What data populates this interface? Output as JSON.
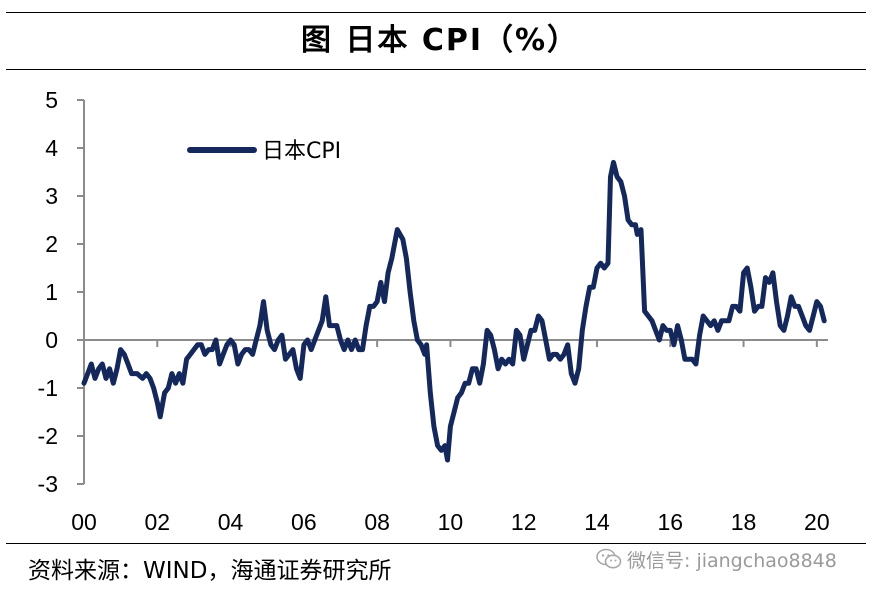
{
  "title": "图  日本 CPI（%）",
  "source": "资料来源：WIND，海通证券研究所",
  "watermark": {
    "icon": "wechat-icon",
    "text": "微信号: jiangchao8848"
  },
  "colors": {
    "series": "#14285c",
    "axis": "#8c8c8c"
  },
  "chart_data": {
    "type": "line",
    "title": "",
    "xlabel": "",
    "ylabel": "",
    "xlim": [
      2000,
      2020.25
    ],
    "ylim": [
      -3,
      5
    ],
    "x_ticks": [
      "00",
      "02",
      "04",
      "06",
      "08",
      "10",
      "12",
      "14",
      "16",
      "18",
      "20"
    ],
    "x_tick_values": [
      2000,
      2002,
      2004,
      2006,
      2008,
      2010,
      2012,
      2014,
      2016,
      2018,
      2020
    ],
    "y_ticks": [
      "5",
      "4",
      "3",
      "2",
      "1",
      "0",
      "-1",
      "-2",
      "-3"
    ],
    "y_tick_values": [
      5,
      4,
      3,
      2,
      1,
      0,
      -1,
      -2,
      -3
    ],
    "grid": false,
    "legend": {
      "position": "top-left"
    },
    "series": [
      {
        "name": "日本CPI",
        "color": "#14285c",
        "points": [
          [
            2000.0,
            -0.9
          ],
          [
            2000.1,
            -0.7
          ],
          [
            2000.2,
            -0.5
          ],
          [
            2000.3,
            -0.8
          ],
          [
            2000.4,
            -0.6
          ],
          [
            2000.5,
            -0.5
          ],
          [
            2000.6,
            -0.8
          ],
          [
            2000.7,
            -0.6
          ],
          [
            2000.8,
            -0.9
          ],
          [
            2000.9,
            -0.6
          ],
          [
            2001.0,
            -0.2
          ],
          [
            2001.1,
            -0.3
          ],
          [
            2001.2,
            -0.5
          ],
          [
            2001.3,
            -0.7
          ],
          [
            2001.45,
            -0.7
          ],
          [
            2001.6,
            -0.8
          ],
          [
            2001.7,
            -0.7
          ],
          [
            2001.8,
            -0.8
          ],
          [
            2001.9,
            -1.0
          ],
          [
            2002.0,
            -1.3
          ],
          [
            2002.08,
            -1.6
          ],
          [
            2002.2,
            -1.1
          ],
          [
            2002.3,
            -1.0
          ],
          [
            2002.4,
            -0.7
          ],
          [
            2002.5,
            -0.9
          ],
          [
            2002.6,
            -0.7
          ],
          [
            2002.7,
            -0.9
          ],
          [
            2002.8,
            -0.4
          ],
          [
            2002.9,
            -0.3
          ],
          [
            2003.0,
            -0.2
          ],
          [
            2003.1,
            -0.1
          ],
          [
            2003.2,
            -0.1
          ],
          [
            2003.3,
            -0.3
          ],
          [
            2003.4,
            -0.2
          ],
          [
            2003.5,
            -0.2
          ],
          [
            2003.6,
            0.0
          ],
          [
            2003.7,
            -0.5
          ],
          [
            2003.8,
            -0.3
          ],
          [
            2003.9,
            -0.1
          ],
          [
            2004.0,
            0.0
          ],
          [
            2004.1,
            -0.1
          ],
          [
            2004.2,
            -0.5
          ],
          [
            2004.3,
            -0.3
          ],
          [
            2004.4,
            -0.2
          ],
          [
            2004.5,
            -0.2
          ],
          [
            2004.6,
            -0.3
          ],
          [
            2004.7,
            0.0
          ],
          [
            2004.8,
            0.3
          ],
          [
            2004.9,
            0.8
          ],
          [
            2005.0,
            0.2
          ],
          [
            2005.1,
            -0.1
          ],
          [
            2005.2,
            -0.2
          ],
          [
            2005.3,
            0.0
          ],
          [
            2005.4,
            0.1
          ],
          [
            2005.5,
            -0.4
          ],
          [
            2005.6,
            -0.3
          ],
          [
            2005.7,
            -0.2
          ],
          [
            2005.8,
            -0.6
          ],
          [
            2005.9,
            -0.8
          ],
          [
            2006.0,
            -0.1
          ],
          [
            2006.1,
            0.0
          ],
          [
            2006.2,
            -0.2
          ],
          [
            2006.3,
            0.0
          ],
          [
            2006.4,
            0.2
          ],
          [
            2006.5,
            0.4
          ],
          [
            2006.6,
            0.9
          ],
          [
            2006.7,
            0.3
          ],
          [
            2006.8,
            0.3
          ],
          [
            2006.9,
            0.3
          ],
          [
            2007.0,
            0.0
          ],
          [
            2007.1,
            -0.2
          ],
          [
            2007.2,
            0.0
          ],
          [
            2007.3,
            -0.2
          ],
          [
            2007.4,
            0.0
          ],
          [
            2007.5,
            -0.2
          ],
          [
            2007.6,
            -0.2
          ],
          [
            2007.7,
            0.3
          ],
          [
            2007.8,
            0.7
          ],
          [
            2007.9,
            0.7
          ],
          [
            2008.0,
            0.8
          ],
          [
            2008.1,
            1.2
          ],
          [
            2008.2,
            0.8
          ],
          [
            2008.3,
            1.4
          ],
          [
            2008.4,
            1.7
          ],
          [
            2008.55,
            2.3
          ],
          [
            2008.7,
            2.1
          ],
          [
            2008.8,
            1.7
          ],
          [
            2008.9,
            1.0
          ],
          [
            2009.0,
            0.4
          ],
          [
            2009.1,
            0.0
          ],
          [
            2009.2,
            -0.1
          ],
          [
            2009.3,
            -0.3
          ],
          [
            2009.35,
            -0.1
          ],
          [
            2009.45,
            -1.1
          ],
          [
            2009.55,
            -1.8
          ],
          [
            2009.65,
            -2.2
          ],
          [
            2009.75,
            -2.3
          ],
          [
            2009.85,
            -2.2
          ],
          [
            2009.92,
            -2.5
          ],
          [
            2010.0,
            -1.8
          ],
          [
            2010.1,
            -1.5
          ],
          [
            2010.2,
            -1.2
          ],
          [
            2010.3,
            -1.1
          ],
          [
            2010.4,
            -0.9
          ],
          [
            2010.5,
            -0.9
          ],
          [
            2010.6,
            -0.6
          ],
          [
            2010.7,
            -0.6
          ],
          [
            2010.8,
            -0.9
          ],
          [
            2010.9,
            -0.5
          ],
          [
            2011.0,
            0.2
          ],
          [
            2011.1,
            0.1
          ],
          [
            2011.2,
            -0.2
          ],
          [
            2011.3,
            -0.6
          ],
          [
            2011.4,
            -0.4
          ],
          [
            2011.5,
            -0.5
          ],
          [
            2011.6,
            -0.4
          ],
          [
            2011.7,
            -0.5
          ],
          [
            2011.8,
            0.2
          ],
          [
            2011.9,
            0.1
          ],
          [
            2012.0,
            -0.4
          ],
          [
            2012.1,
            -0.1
          ],
          [
            2012.2,
            0.2
          ],
          [
            2012.3,
            0.2
          ],
          [
            2012.4,
            0.5
          ],
          [
            2012.5,
            0.4
          ],
          [
            2012.6,
            0.0
          ],
          [
            2012.7,
            -0.4
          ],
          [
            2012.8,
            -0.3
          ],
          [
            2012.9,
            -0.3
          ],
          [
            2013.0,
            -0.4
          ],
          [
            2013.1,
            -0.3
          ],
          [
            2013.2,
            -0.1
          ],
          [
            2013.3,
            -0.7
          ],
          [
            2013.4,
            -0.9
          ],
          [
            2013.5,
            -0.6
          ],
          [
            2013.6,
            0.2
          ],
          [
            2013.7,
            0.7
          ],
          [
            2013.8,
            1.1
          ],
          [
            2013.9,
            1.1
          ],
          [
            2014.0,
            1.5
          ],
          [
            2014.1,
            1.6
          ],
          [
            2014.2,
            1.5
          ],
          [
            2014.3,
            1.6
          ],
          [
            2014.37,
            3.4
          ],
          [
            2014.45,
            3.7
          ],
          [
            2014.55,
            3.4
          ],
          [
            2014.65,
            3.3
          ],
          [
            2014.75,
            3.0
          ],
          [
            2014.85,
            2.5
          ],
          [
            2014.95,
            2.4
          ],
          [
            2015.05,
            2.4
          ],
          [
            2015.1,
            2.2
          ],
          [
            2015.2,
            2.3
          ],
          [
            2015.3,
            0.6
          ],
          [
            2015.4,
            0.5
          ],
          [
            2015.5,
            0.4
          ],
          [
            2015.6,
            0.2
          ],
          [
            2015.7,
            0.0
          ],
          [
            2015.8,
            0.3
          ],
          [
            2015.9,
            0.2
          ],
          [
            2016.0,
            0.2
          ],
          [
            2016.1,
            -0.1
          ],
          [
            2016.2,
            0.3
          ],
          [
            2016.3,
            0.0
          ],
          [
            2016.4,
            -0.4
          ],
          [
            2016.5,
            -0.4
          ],
          [
            2016.6,
            -0.4
          ],
          [
            2016.7,
            -0.5
          ],
          [
            2016.8,
            0.1
          ],
          [
            2016.9,
            0.5
          ],
          [
            2017.0,
            0.4
          ],
          [
            2017.1,
            0.3
          ],
          [
            2017.2,
            0.4
          ],
          [
            2017.3,
            0.2
          ],
          [
            2017.4,
            0.4
          ],
          [
            2017.5,
            0.4
          ],
          [
            2017.6,
            0.4
          ],
          [
            2017.7,
            0.7
          ],
          [
            2017.8,
            0.7
          ],
          [
            2017.9,
            0.6
          ],
          [
            2018.0,
            1.4
          ],
          [
            2018.1,
            1.5
          ],
          [
            2018.2,
            1.1
          ],
          [
            2018.3,
            0.6
          ],
          [
            2018.4,
            0.7
          ],
          [
            2018.5,
            0.7
          ],
          [
            2018.6,
            1.3
          ],
          [
            2018.7,
            1.2
          ],
          [
            2018.8,
            1.4
          ],
          [
            2018.9,
            0.8
          ],
          [
            2019.0,
            0.3
          ],
          [
            2019.1,
            0.2
          ],
          [
            2019.2,
            0.5
          ],
          [
            2019.3,
            0.9
          ],
          [
            2019.4,
            0.7
          ],
          [
            2019.5,
            0.7
          ],
          [
            2019.6,
            0.5
          ],
          [
            2019.7,
            0.3
          ],
          [
            2019.8,
            0.2
          ],
          [
            2019.9,
            0.5
          ],
          [
            2020.0,
            0.8
          ],
          [
            2020.1,
            0.7
          ],
          [
            2020.2,
            0.4
          ]
        ]
      }
    ]
  }
}
